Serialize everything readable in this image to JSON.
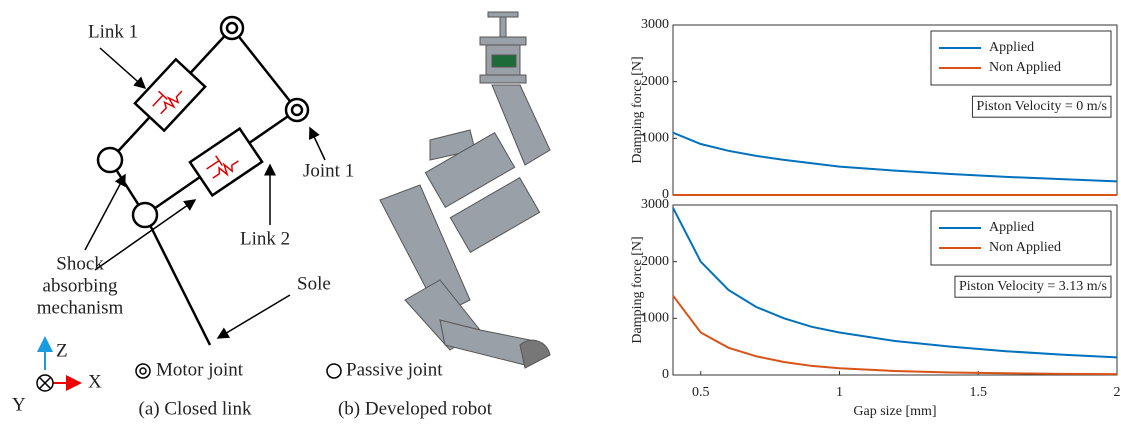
{
  "diagram": {
    "link1": "Link 1",
    "joint1": "Joint 1",
    "link2": "Link 2",
    "shock": [
      "Shock",
      "absorbing",
      "mechanism"
    ],
    "sole": "Sole",
    "axis_z": "Z",
    "axis_x": "X",
    "axis_y": "Y",
    "motor_joint": "Motor joint",
    "passive_joint": "Passive joint",
    "caption_a": "(a) Closed link",
    "caption_b": "(b) Developed robot"
  },
  "chart_data": [
    {
      "type": "line",
      "ylabel": "Damping force [N]",
      "x": [
        0.4,
        0.5,
        0.6,
        0.7,
        0.8,
        0.9,
        1.0,
        1.2,
        1.4,
        1.6,
        1.8,
        2.0
      ],
      "series": [
        {
          "name": "Applied",
          "color": "#0072bd",
          "values": [
            1100,
            900,
            780,
            690,
            620,
            560,
            500,
            430,
            370,
            320,
            280,
            240
          ]
        },
        {
          "name": "Non Applied",
          "color": "#d95319",
          "values": [
            0,
            0,
            0,
            0,
            0,
            0,
            0,
            0,
            0,
            0,
            0,
            0
          ]
        }
      ],
      "xlim": [
        0.4,
        2
      ],
      "ylim": [
        0,
        3000
      ],
      "yticks": [
        0,
        1000,
        2000,
        3000
      ],
      "annotation": "Piston Velocity = 0 m/s",
      "legend": "upper right"
    },
    {
      "type": "line",
      "ylabel": "Damping force [N]",
      "xlabel": "Gap size [mm]",
      "x": [
        0.4,
        0.5,
        0.6,
        0.7,
        0.8,
        0.9,
        1.0,
        1.2,
        1.4,
        1.6,
        1.8,
        2.0
      ],
      "series": [
        {
          "name": "Applied",
          "color": "#0072bd",
          "values": [
            2950,
            2000,
            1500,
            1200,
            1000,
            850,
            750,
            600,
            500,
            420,
            360,
            310
          ]
        },
        {
          "name": "Non Applied",
          "color": "#d95319",
          "values": [
            1400,
            750,
            480,
            330,
            230,
            160,
            120,
            70,
            45,
            30,
            20,
            15
          ]
        }
      ],
      "xlim": [
        0.4,
        2
      ],
      "xticks": [
        0.5,
        1,
        1.5,
        2
      ],
      "ylim": [
        0,
        3000
      ],
      "yticks": [
        0,
        1000,
        2000,
        3000
      ],
      "annotation": "Piston Velocity = 3.13 m/s",
      "legend": "upper right"
    }
  ]
}
